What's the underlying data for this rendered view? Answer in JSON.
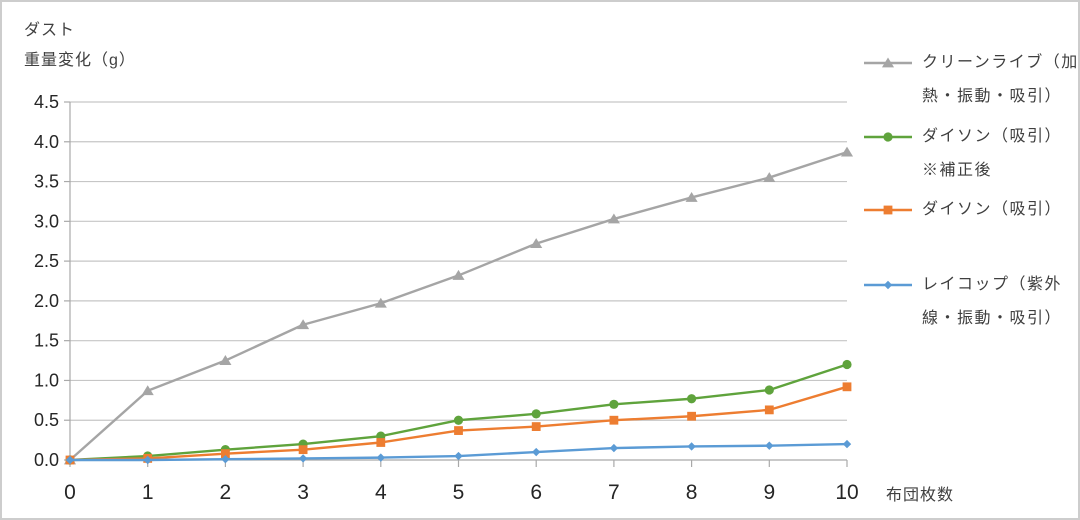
{
  "figure": {
    "y_axis_title_line1": "ダスト",
    "y_axis_title_line2": "重量変化（g）",
    "x_axis_title": "布団枚数"
  },
  "colors": {
    "background": "#FFFFFF",
    "border": "#CDCDCD",
    "grid": "#C6C6C6",
    "axis": "#A9A9A9",
    "tick_label": "#262626",
    "text": "#404040",
    "series_gray": "#A5A5A5",
    "series_green": "#5FA33C",
    "series_orange": "#ED7D31",
    "series_blue": "#5B9BD5"
  },
  "chart_data": {
    "type": "line",
    "title": "",
    "xlabel": "布団枚数",
    "ylabel": "ダスト重量変化（g）",
    "x": [
      0,
      1,
      2,
      3,
      4,
      5,
      6,
      7,
      8,
      9,
      10
    ],
    "x_tick_labels": [
      "0",
      "1",
      "2",
      "3",
      "4",
      "5",
      "6",
      "7",
      "8",
      "9",
      "10"
    ],
    "y_tick_labels": [
      "0.0",
      "0.5",
      "1.0",
      "1.5",
      "2.0",
      "2.5",
      "3.0",
      "3.5",
      "4.0",
      "4.5"
    ],
    "ylim": [
      0,
      4.5
    ],
    "ytick_step": 0.5,
    "grid": true,
    "legend_position": "right",
    "series": [
      {
        "name": "クリーンライブ（加熱・振動・吸引）",
        "legend_lines": [
          "クリーンライブ（加",
          "熱・振動・吸引）"
        ],
        "color": "#A5A5A5",
        "marker": "triangle",
        "values": [
          0,
          0.87,
          1.25,
          1.7,
          1.97,
          2.32,
          2.72,
          3.03,
          3.3,
          3.55,
          3.87
        ]
      },
      {
        "name": "ダイソン（吸引）※補正後",
        "legend_lines": [
          "ダイソン（吸引）",
          "※補正後"
        ],
        "color": "#5FA33C",
        "marker": "circle",
        "values": [
          0,
          0.05,
          0.13,
          0.2,
          0.3,
          0.5,
          0.58,
          0.7,
          0.77,
          0.88,
          1.2
        ]
      },
      {
        "name": "ダイソン（吸引）",
        "legend_lines": [
          "ダイソン（吸引）"
        ],
        "color": "#ED7D31",
        "marker": "square",
        "values": [
          0,
          0.02,
          0.08,
          0.13,
          0.22,
          0.37,
          0.42,
          0.5,
          0.55,
          0.63,
          0.92
        ]
      },
      {
        "name": "レイコップ（紫外線・振動・吸引）",
        "legend_lines": [
          "レイコップ（紫外",
          "線・振動・吸引）"
        ],
        "color": "#5B9BD5",
        "marker": "diamond",
        "values": [
          0,
          0.0,
          0.01,
          0.02,
          0.03,
          0.05,
          0.1,
          0.15,
          0.17,
          0.18,
          0.2
        ]
      }
    ]
  }
}
